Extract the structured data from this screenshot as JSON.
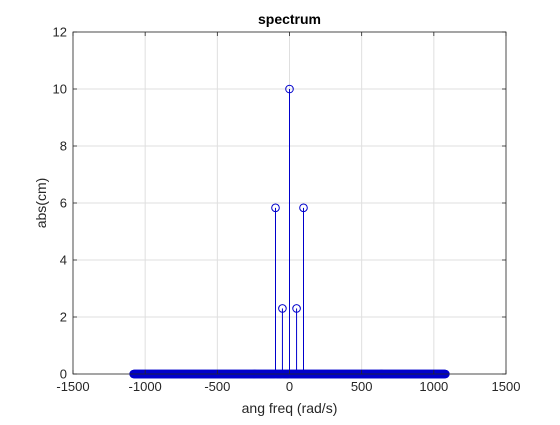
{
  "chart_data": {
    "type": "stem",
    "title": "spectrum",
    "xlabel": "ang freq (rad/s)",
    "ylabel": "abs(cm)",
    "xlim": [
      -1500,
      1500
    ],
    "ylim": [
      0,
      12
    ],
    "xticks": [
      -1500,
      -1000,
      -500,
      0,
      500,
      1000,
      1500
    ],
    "yticks": [
      0,
      2,
      4,
      6,
      8,
      10,
      12
    ],
    "grid": true,
    "color": "#0000cc",
    "marker": "circle",
    "baseline_range": [
      -1080,
      1080
    ],
    "points": [
      {
        "x": -97,
        "y": 5.83
      },
      {
        "x": -49,
        "y": 2.3
      },
      {
        "x": 0,
        "y": 10.0
      },
      {
        "x": 49,
        "y": 2.3
      },
      {
        "x": 97,
        "y": 5.83
      }
    ]
  }
}
